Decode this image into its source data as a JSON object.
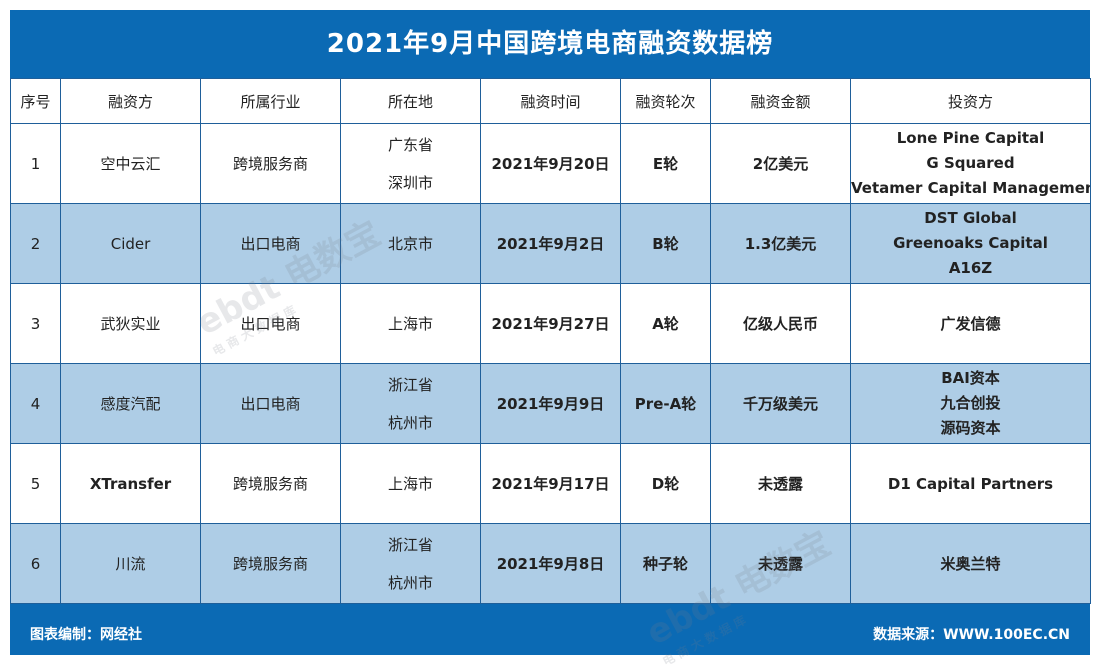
{
  "title": "2021年9月中国跨境电商融资数据榜",
  "headers": [
    "序号",
    "融资方",
    "所属行业",
    "所在地",
    "融资时间",
    "融资轮次",
    "融资金额",
    "投资方"
  ],
  "rows": [
    {
      "no": "1",
      "company": "空中云汇",
      "industry": "跨境服务商",
      "location": [
        "广东省",
        "深圳市"
      ],
      "date": "2021年9月20日",
      "round": "E轮",
      "amount": "2亿美元",
      "investors": [
        "Lone Pine Capital",
        "G Squared",
        "Vetamer Capital Management等"
      ]
    },
    {
      "no": "2",
      "company": "Cider",
      "industry": "出口电商",
      "location": [
        "北京市"
      ],
      "date": "2021年9月2日",
      "round": "B轮",
      "amount": "1.3亿美元",
      "investors": [
        "DST Global",
        "Greenoaks Capital",
        "A16Z"
      ]
    },
    {
      "no": "3",
      "company": "武狄实业",
      "industry": "出口电商",
      "location": [
        "上海市"
      ],
      "date": "2021年9月27日",
      "round": "A轮",
      "amount": "亿级人民币",
      "investors": [
        "广发信德"
      ]
    },
    {
      "no": "4",
      "company": "感度汽配",
      "industry": "出口电商",
      "location": [
        "浙江省",
        "杭州市"
      ],
      "date": "2021年9月9日",
      "round": "Pre-A轮",
      "amount": "千万级美元",
      "investors": [
        "BAI资本",
        "九合创投",
        "源码资本"
      ]
    },
    {
      "no": "5",
      "company": "XTransfer",
      "industry": "跨境服务商",
      "location": [
        "上海市"
      ],
      "date": "2021年9月17日",
      "round": "D轮",
      "amount": "未透露",
      "investors": [
        "D1 Capital Partners"
      ]
    },
    {
      "no": "6",
      "company": "川流",
      "industry": "跨境服务商",
      "location": [
        "浙江省",
        "杭州市"
      ],
      "date": "2021年9月8日",
      "round": "种子轮",
      "amount": "未透露",
      "investors": [
        "米奥兰特"
      ]
    }
  ],
  "footer": {
    "left": "图表编制：网经社",
    "right": "数据来源：WWW.100EC.CN"
  },
  "watermark": {
    "main": "电数宝",
    "sub": "电商大数据库",
    "logo": "ebdt"
  }
}
